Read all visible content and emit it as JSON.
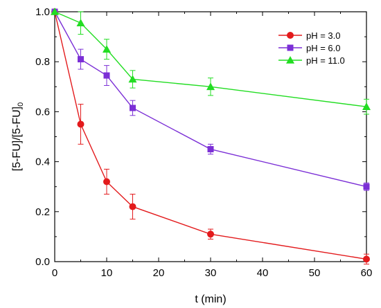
{
  "chart_data": {
    "type": "line",
    "title": "",
    "xlabel": "t (min)",
    "ylabel": "[5-FU]/[5-FU]",
    "ylabel_subscript": "0",
    "xlim": [
      0,
      60
    ],
    "ylim": [
      0.0,
      1.0
    ],
    "x_ticks": [
      "0",
      "10",
      "20",
      "30",
      "40",
      "50",
      "60"
    ],
    "y_ticks": [
      "0.0",
      "0.2",
      "0.4",
      "0.6",
      "0.8",
      "1.0"
    ],
    "x_tick_values": [
      0,
      10,
      20,
      30,
      40,
      50,
      60
    ],
    "y_tick_values": [
      0.0,
      0.2,
      0.4,
      0.6,
      0.8,
      1.0
    ],
    "grid": false,
    "legend_position": "top-right",
    "x": [
      0,
      5,
      10,
      15,
      30,
      60
    ],
    "series": [
      {
        "name": "pH = 3.0",
        "color": "#e31a1c",
        "marker": "circle",
        "values": [
          1.0,
          0.55,
          0.32,
          0.22,
          0.11,
          0.01
        ],
        "errors": [
          0.0,
          0.08,
          0.05,
          0.05,
          0.02,
          0.02
        ]
      },
      {
        "name": "pH = 6.0",
        "color": "#7b2fd6",
        "marker": "square",
        "values": [
          1.0,
          0.81,
          0.745,
          0.615,
          0.45,
          0.3
        ],
        "errors": [
          0.0,
          0.04,
          0.04,
          0.03,
          0.02,
          0.015
        ]
      },
      {
        "name": "pH = 11.0",
        "color": "#22dd22",
        "marker": "triangle",
        "values": [
          1.0,
          0.955,
          0.85,
          0.73,
          0.7,
          0.62
        ],
        "errors": [
          0.0,
          0.045,
          0.04,
          0.035,
          0.035,
          0.03
        ]
      }
    ]
  }
}
